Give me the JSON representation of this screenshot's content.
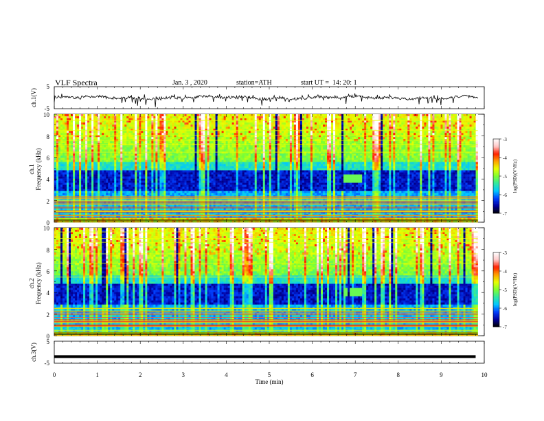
{
  "header": {
    "title": "VLF Spectra",
    "date": "Jan. 3 , 2020",
    "station": "station=ATH",
    "start": "start UT =  14: 20: 1"
  },
  "colorbar": {
    "label": "log(PSD)(V²/Hz)",
    "ticks": [
      "-3",
      "-4",
      "-5",
      "-6",
      "-7"
    ],
    "colors": [
      "#000000",
      "#0000a0",
      "#0040ff",
      "#00c8ff",
      "#30e8a0",
      "#80ff30",
      "#e8ff00",
      "#ffa000",
      "#ff2000",
      "#ffc8c8",
      "#ffffff"
    ]
  },
  "chart_data": [
    {
      "type": "line",
      "ylabel": "ch.1(V)",
      "yticks": [
        "5",
        "-5"
      ],
      "ylim": [
        -5,
        5
      ],
      "xlim": [
        0,
        10
      ],
      "trace": "noisy waveform around 0 V with spikes"
    },
    {
      "type": "heatmap",
      "ylabel": "Frequency (kHz)",
      "channel_label": "ch.1",
      "yticks": [
        "0",
        "2",
        "4",
        "6",
        "8",
        "10"
      ],
      "ylim": [
        0,
        10
      ],
      "xlim": [
        0,
        9.85
      ],
      "zlim": [
        -7,
        -3
      ],
      "features": [
        {
          "desc": "broadband sferics (vertical streaks)",
          "x_range": [
            0,
            9.85
          ],
          "f_range": [
            0,
            10
          ]
        },
        {
          "desc": "low-power band",
          "f_range": [
            2.8,
            4.8
          ],
          "log_psd": -6.3
        },
        {
          "desc": "enhanced band",
          "f_range": [
            5.5,
            10
          ],
          "log_psd": -5.2
        },
        {
          "desc": "horizontal lines",
          "f_range": [
            0,
            2.6
          ]
        },
        {
          "desc": "emission patch",
          "time_min": 6.95,
          "f_khz": 4.0
        }
      ]
    },
    {
      "type": "heatmap",
      "ylabel": "Frequency (kHz)",
      "channel_label": "ch.2",
      "yticks": [
        "0",
        "2",
        "4",
        "6",
        "8",
        "10"
      ],
      "ylim": [
        0,
        10
      ],
      "xlim": [
        0,
        9.85
      ],
      "zlim": [
        -7,
        -3
      ],
      "features": [
        {
          "desc": "broadband sferics (vertical streaks)",
          "x_range": [
            0,
            9.85
          ],
          "f_range": [
            0,
            10
          ]
        },
        {
          "desc": "low-power band",
          "f_range": [
            2.8,
            4.8
          ],
          "log_psd": -6.2
        },
        {
          "desc": "enhanced band",
          "f_range": [
            5.5,
            10
          ],
          "log_psd": -5.3
        },
        {
          "desc": "horizontal lines",
          "f_range": [
            0,
            2.6
          ]
        },
        {
          "desc": "emission patch",
          "time_min": 6.95,
          "f_khz": 4.0
        }
      ]
    },
    {
      "type": "line",
      "ylabel": "ch.3(V)",
      "yticks": [
        "5",
        "-5"
      ],
      "ylim": [
        -5,
        5
      ],
      "xlim": [
        0,
        10
      ],
      "xlabel": "Time (min)",
      "xticks": [
        "0",
        "1",
        "2",
        "3",
        "4",
        "5",
        "6",
        "7",
        "8",
        "9",
        "10"
      ],
      "trace": "constant level near -2 V",
      "level": -2
    }
  ]
}
